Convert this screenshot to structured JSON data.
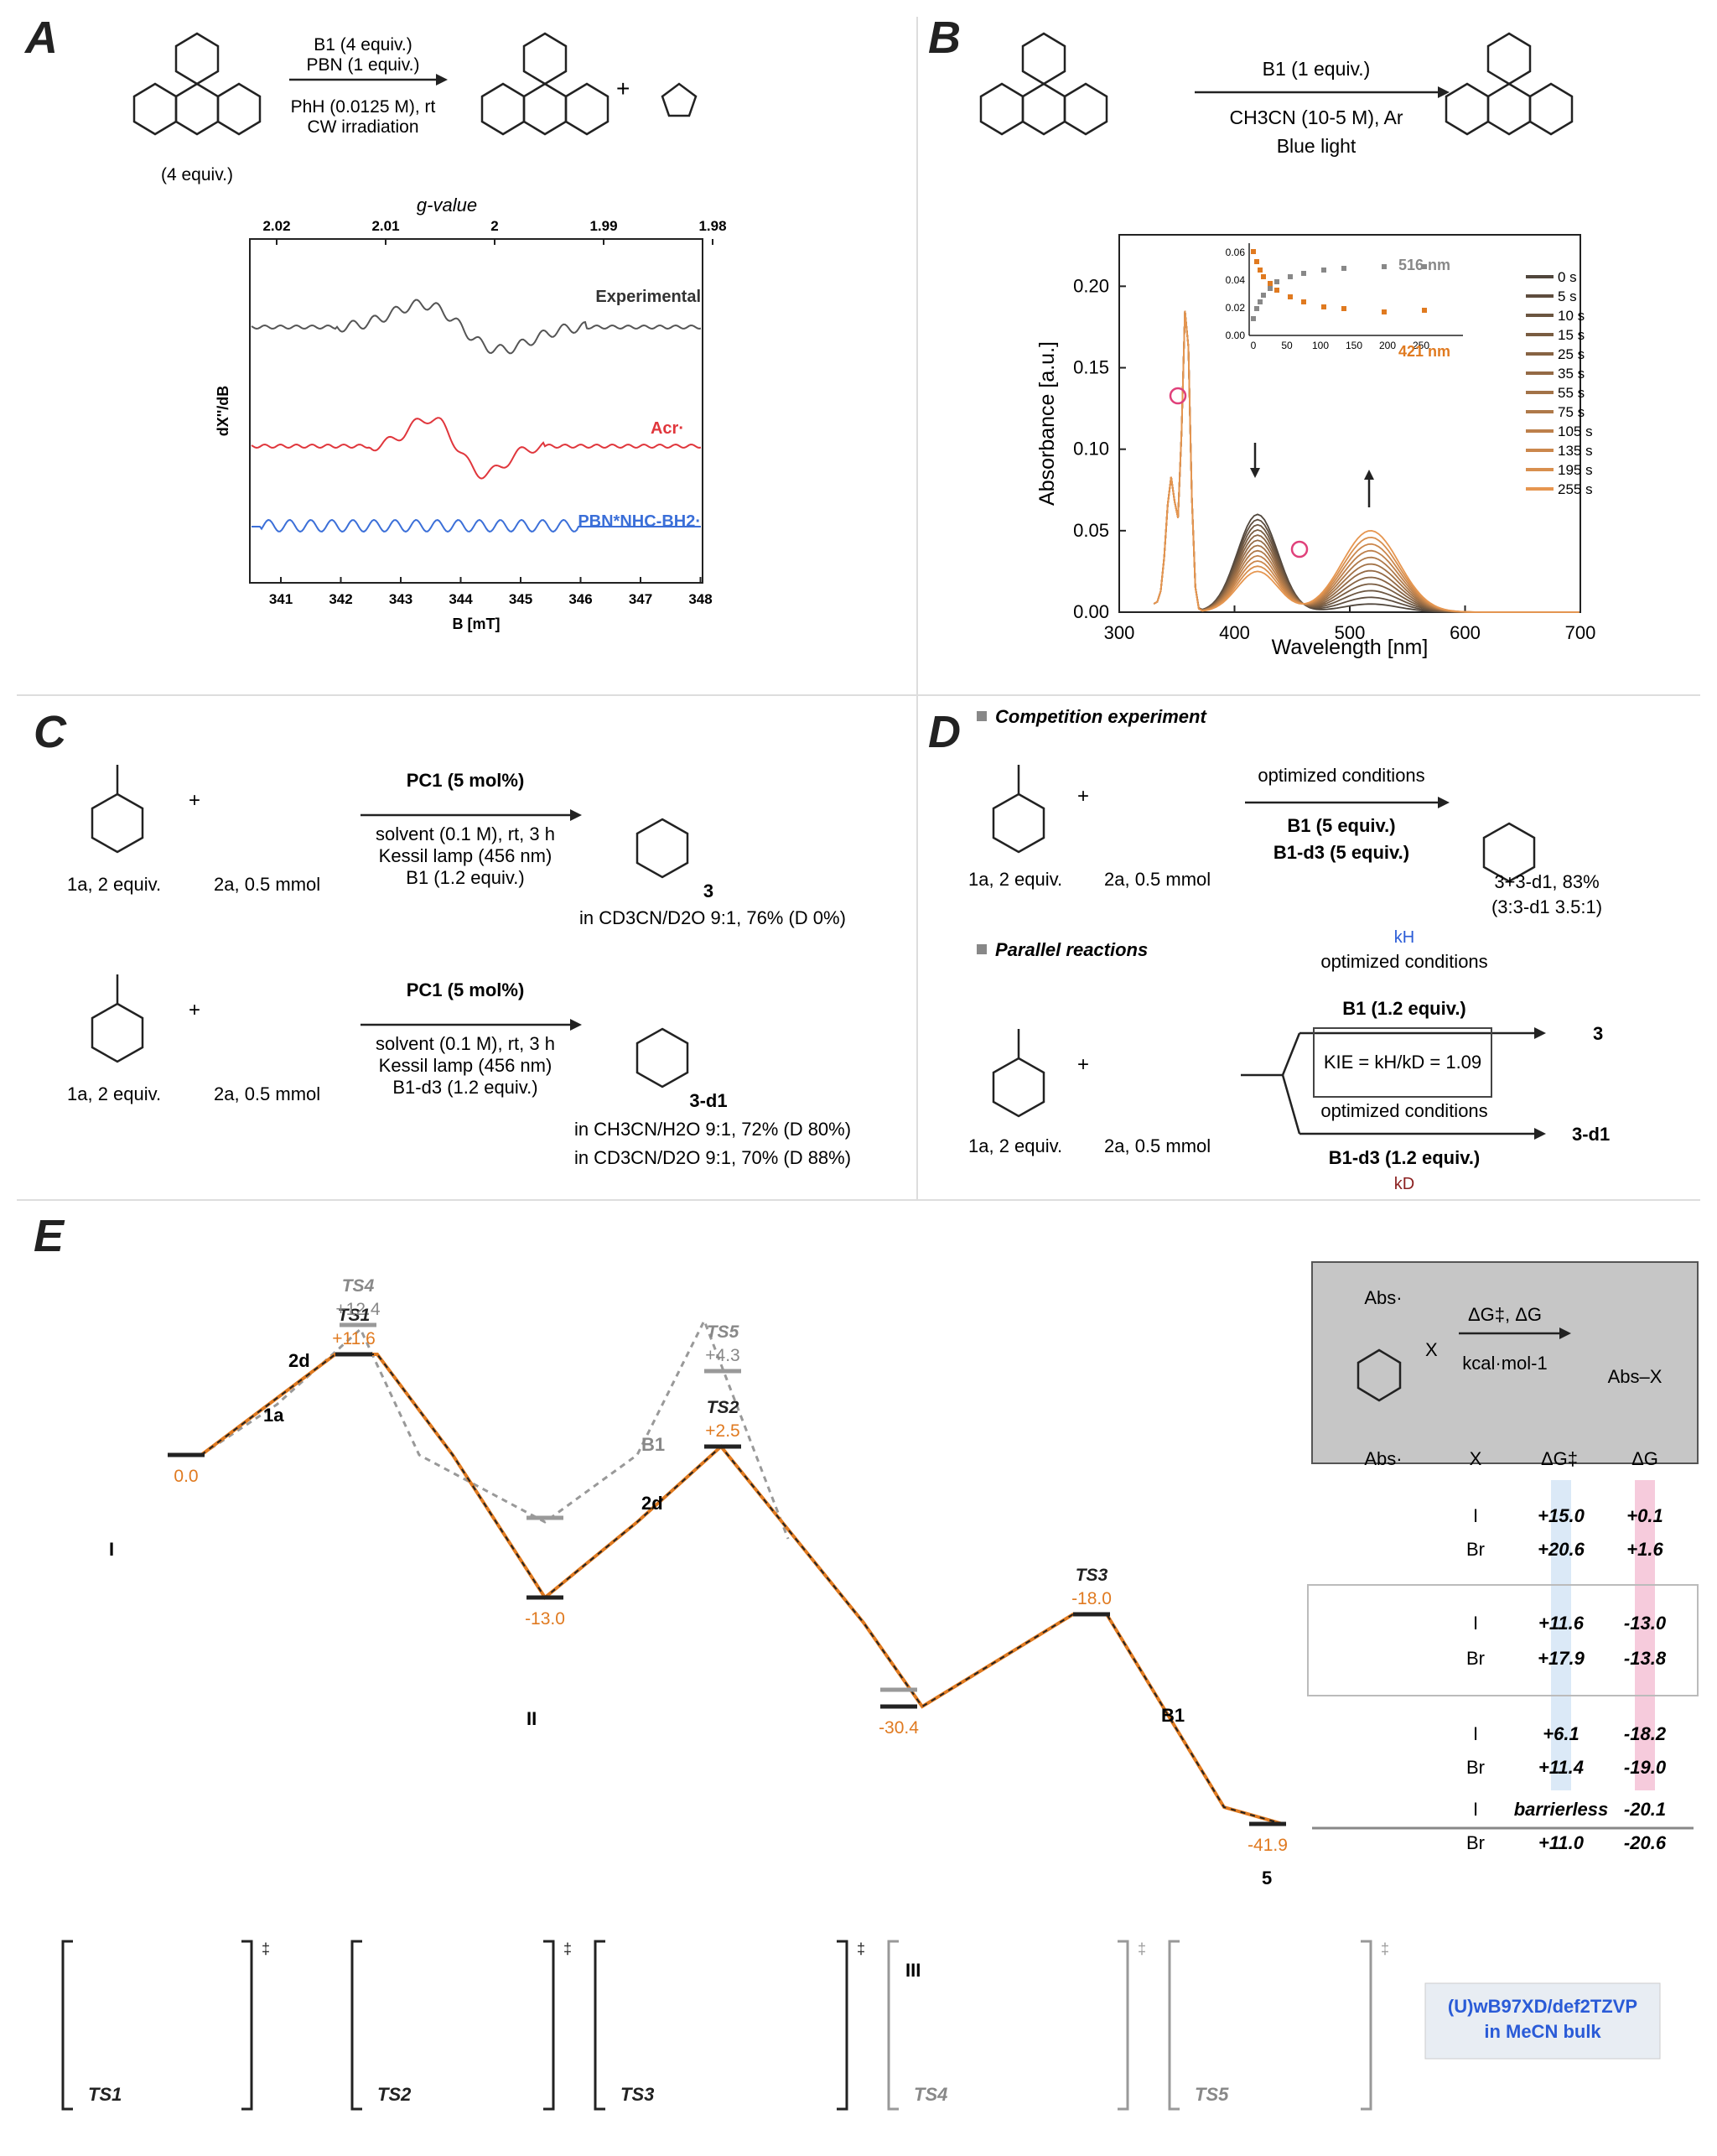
{
  "panels": {
    "A": {
      "label": "A",
      "scheme": {
        "reagent1": "B1 (4 equiv.)",
        "reagent2": "PBN (1 equiv.)",
        "cond1": "PhH (0.0125 M), rt",
        "cond2": "CW irradiation",
        "acr_equiv": "(4 equiv.)"
      },
      "epr": {
        "top_axis_title": "g-value",
        "top_ticks": [
          "2.02",
          "2.01",
          "2",
          "1.99",
          "1.98"
        ],
        "bottom_ticks": [
          "341",
          "342",
          "343",
          "344",
          "345",
          "346",
          "347",
          "348"
        ],
        "xlabel": "B [mT]",
        "ylabel": "dX''/dB",
        "trace_labels": [
          "Experimental",
          "Acr·",
          "PBN*NHC-BH2·"
        ],
        "colors": {
          "exp": "#555555",
          "acr": "#e0363c",
          "pbn": "#3b6fd8"
        }
      }
    },
    "B": {
      "label": "B",
      "scheme": {
        "reagent": "B1 (1 equiv.)",
        "cond1": "CH3CN (10-5 M), Ar",
        "cond2": "Blue light"
      },
      "chart": {
        "xlabel": "Wavelength [nm]",
        "ylabel": "Absorbance [a.u.]",
        "xticks": [
          "300",
          "400",
          "500",
          "600",
          "700"
        ],
        "yticks": [
          "0.00",
          "0.05",
          "0.10",
          "0.15",
          "0.20"
        ],
        "legend": [
          "0 s",
          "5 s",
          "10 s",
          "15 s",
          "25 s",
          "35 s",
          "55 s",
          "75 s",
          "105 s",
          "135 s",
          "195 s",
          "255 s"
        ],
        "inset": {
          "xticks": [
            "0",
            "50",
            "100",
            "150",
            "200",
            "250"
          ],
          "yticks": [
            "0.00",
            "0.02",
            "0.04",
            "0.06"
          ],
          "label516": "516 nm",
          "label421": "421 nm"
        }
      }
    },
    "C": {
      "label": "C",
      "r1": {
        "sub1": "1a, 2 equiv.",
        "sub2": "2a, 0.5 mmol",
        "cat": "PC1 (5 mol%)",
        "c1": "solvent (0.1 M), rt, 3 h",
        "c2": "Kessil lamp (456 nm)",
        "c3": "B1 (1.2 equiv.)",
        "prod": "3",
        "res1": "in CD3CN/D2O 9:1, 76% (D 0%)"
      },
      "r2": {
        "sub1": "1a, 2 equiv.",
        "sub2": "2a, 0.5 mmol",
        "cat": "PC1 (5 mol%)",
        "c1": "solvent (0.1 M), rt, 3 h",
        "c2": "Kessil lamp (456 nm)",
        "c3": "B1-d3 (1.2 equiv.)",
        "prod": "3-d1",
        "res1": "in CH3CN/H2O 9:1, 72% (D 80%)",
        "res2": "in CD3CN/D2O 9:1, 70% (D 88%)"
      }
    },
    "D": {
      "label": "D",
      "comp_title": "Competition experiment",
      "comp": {
        "sub1": "1a, 2 equiv.",
        "sub2": "2a, 0.5 mmol",
        "cond": "optimized conditions",
        "r1": "B1 (5 equiv.)",
        "r2": "B1-d3 (5 equiv.)",
        "prod": "3+3-d1, 83%",
        "ratio": "(3:3-d1 3.5:1)"
      },
      "par_title": "Parallel reactions",
      "par": {
        "kh": "kH",
        "cond_top": "optimized conditions",
        "r_top": "B1 (1.2 equiv.)",
        "kie": "KIE = kH/kD = 1.09",
        "cond_bot": "optimized conditions",
        "r_bot": "B1-d3 (1.2 equiv.)",
        "kd": "kD",
        "p_top": "3",
        "p_bot": "3-d1",
        "sub1": "1a, 2 equiv.",
        "sub2": "2a, 0.5 mmol"
      }
    },
    "E": {
      "label": "E",
      "profile": {
        "levels": [
          {
            "name": "I",
            "energy": "0.0"
          },
          {
            "name": "TS1",
            "energy": "+11.6"
          },
          {
            "name": "TS4",
            "energy": "+12.4"
          },
          {
            "name": "II",
            "energy": "-13.0"
          },
          {
            "name": "TS2",
            "energy": "+2.5"
          },
          {
            "name": "TS5",
            "energy": "+4.3"
          },
          {
            "name": "III",
            "energy": "-30.4"
          },
          {
            "name": "TS3",
            "energy": "-18.0"
          },
          {
            "name": "5",
            "energy": "-41.9"
          }
        ],
        "step_labels": {
          "a": "2d",
          "b": "1a",
          "c": "B1",
          "d": "2d",
          "e": "B1"
        }
      },
      "legend_box": {
        "abs": "Abs·",
        "x": "X",
        "dg": "ΔG‡, ΔG",
        "unit": "kcal·mol-1",
        "prod": "Abs–X"
      },
      "table": {
        "headers": [
          "Abs·",
          "X",
          "ΔG‡",
          "ΔG"
        ],
        "rows": [
          {
            "x": "I",
            "dg_act": "+15.0",
            "dg": "+0.1"
          },
          {
            "x": "Br",
            "dg_act": "+20.6",
            "dg": "+1.6"
          },
          {
            "x": "I",
            "dg_act": "+11.6",
            "dg": "-13.0"
          },
          {
            "x": "Br",
            "dg_act": "+17.9",
            "dg": "-13.8"
          },
          {
            "x": "I",
            "dg_act": "+6.1",
            "dg": "-18.2"
          },
          {
            "x": "Br",
            "dg_act": "+11.4",
            "dg": "-19.0"
          },
          {
            "x": "I",
            "dg_act": "barrierless",
            "dg": "-20.1"
          },
          {
            "x": "Br",
            "dg_act": "+11.0",
            "dg": "-20.6"
          }
        ]
      },
      "ts_labels": [
        "TS1",
        "TS2",
        "TS3",
        "TS4",
        "TS5"
      ],
      "method": [
        "(U)wB97XD/def2TZVP",
        "in MeCN bulk"
      ],
      "colors": {
        "orange": "#e07a20",
        "gray": "#8a8a8a",
        "blue": "#2a5bd7"
      }
    }
  }
}
